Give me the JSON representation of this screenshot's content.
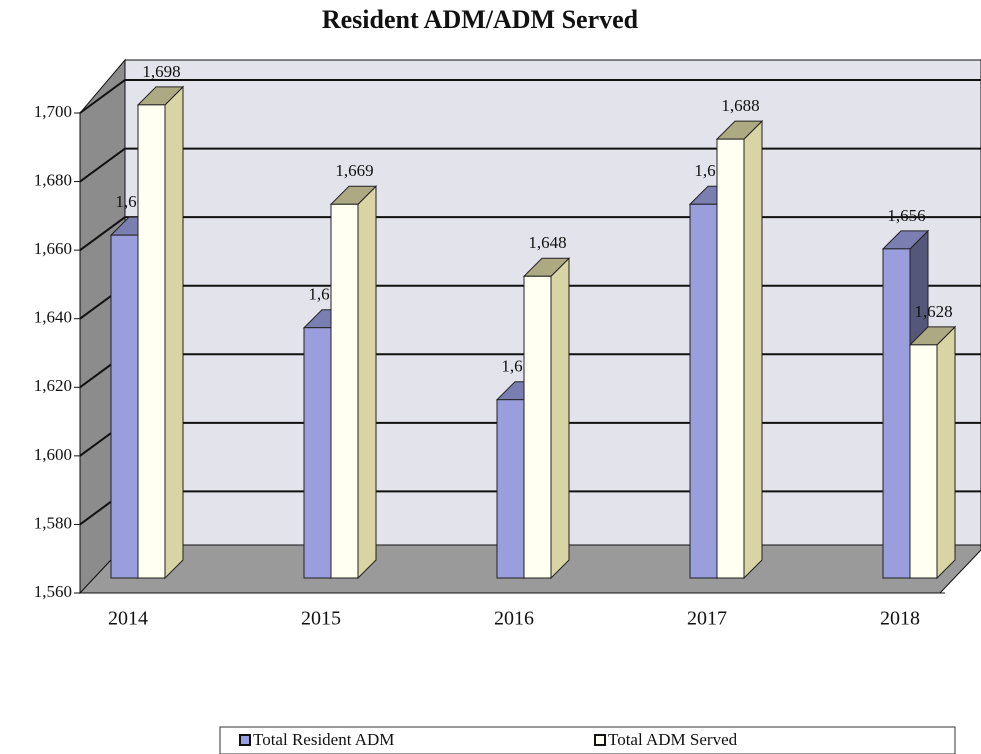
{
  "chart_data": {
    "type": "bar3d",
    "title": "Resident ADM/ADM Served",
    "categories": [
      "2014",
      "2015",
      "2016",
      "2017",
      "2018"
    ],
    "series": [
      {
        "name": "Total Resident ADM",
        "color": "#9a9edd",
        "values": [
          1660,
          1633,
          1612,
          1669,
          1656
        ],
        "value_labels": [
          "1,660",
          "1,633",
          "1,612",
          "1,669",
          "1,656"
        ]
      },
      {
        "name": "Total ADM Served",
        "color": "#fffff2",
        "values": [
          1698,
          1669,
          1648,
          1688,
          1628
        ],
        "value_labels": [
          "1,698",
          "1,669",
          "1,648",
          "1,688",
          "1,628"
        ]
      }
    ],
    "ylim": [
      1560,
      1700
    ],
    "yticks": [
      {
        "value": 1560,
        "label": "1,560"
      },
      {
        "value": 1580,
        "label": "1,580"
      },
      {
        "value": 1600,
        "label": "1,600"
      },
      {
        "value": 1620,
        "label": "1,620"
      },
      {
        "value": 1640,
        "label": "1,640"
      },
      {
        "value": 1660,
        "label": "1,660"
      },
      {
        "value": 1680,
        "label": "1,680"
      },
      {
        "value": 1700,
        "label": "1,700"
      }
    ],
    "grid": true,
    "legend": "bottom"
  }
}
